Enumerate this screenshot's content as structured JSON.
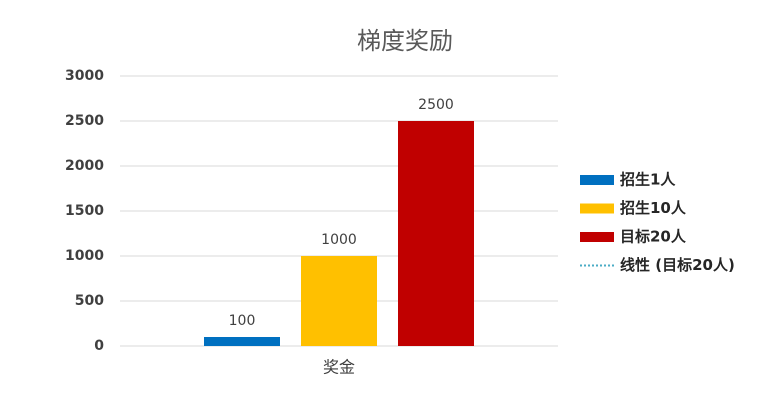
{
  "chart_data": {
    "type": "bar",
    "title": "梯度奖励",
    "categories": [
      "奖金"
    ],
    "series": [
      {
        "name": "招生1人",
        "color": "#0070c0",
        "values": [
          100
        ]
      },
      {
        "name": "招生10人",
        "color": "#ffc000",
        "values": [
          1000
        ]
      },
      {
        "name": "目标20人",
        "color": "#c00000",
        "values": [
          2500
        ]
      }
    ],
    "trendline": {
      "name": "线性 (目标20人)",
      "color": "#4bacc6",
      "style": "dotted"
    },
    "ylim": [
      0,
      3000
    ],
    "yticks": [
      0,
      500,
      1000,
      1500,
      2000,
      2500,
      3000
    ],
    "grid": true,
    "legend": "right"
  }
}
